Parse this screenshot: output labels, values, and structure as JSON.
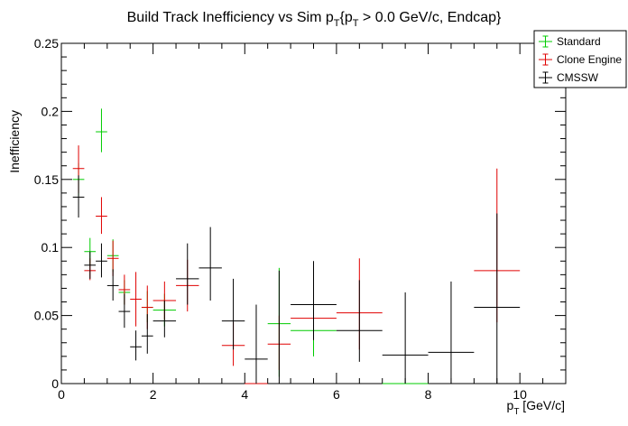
{
  "chart_data": {
    "type": "scatter",
    "title": "Build Track Inefficiency vs Sim p_{T}{p_{T} > 0.0 GeV/c, Endcap}",
    "title_parts": [
      "Build Track Inefficiency vs Sim p",
      "T",
      "{p",
      "T",
      " > 0.0 GeV/c, Endcap}"
    ],
    "xlabel_parts": [
      "p",
      "T",
      " [GeV/c]"
    ],
    "ylabel": "Inefficiency",
    "xlim": [
      0,
      11
    ],
    "ylim": [
      0,
      0.25
    ],
    "x_ticks": [
      0,
      2,
      4,
      6,
      8,
      10
    ],
    "x_tick_labels": [
      "0",
      "2",
      "4",
      "6",
      "8",
      "10"
    ],
    "y_ticks": [
      0,
      0.05,
      0.1,
      0.15,
      0.2,
      0.25
    ],
    "y_tick_labels": [
      "0",
      "0.05",
      "0.1",
      "0.15",
      "0.2",
      "0.25"
    ],
    "legend": "top-right",
    "series": [
      {
        "name": "Standard",
        "color": "#00cc00",
        "points": [
          {
            "xlo": 0.25,
            "xhi": 0.5,
            "y": 0.15,
            "elo": 0.138,
            "ehi": 0.162
          },
          {
            "xlo": 0.5,
            "xhi": 0.75,
            "y": 0.097,
            "elo": 0.087,
            "ehi": 0.107
          },
          {
            "xlo": 0.75,
            "xhi": 1.0,
            "y": 0.185,
            "elo": 0.17,
            "ehi": 0.202
          },
          {
            "xlo": 1.0,
            "xhi": 1.25,
            "y": 0.094,
            "elo": 0.082,
            "ehi": 0.106
          },
          {
            "xlo": 1.25,
            "xhi": 1.5,
            "y": 0.067,
            "elo": 0.058,
            "ehi": 0.076
          },
          {
            "xlo": 1.75,
            "xhi": 2.0,
            "y": 0.056,
            "elo": 0.045,
            "ehi": 0.068
          },
          {
            "xlo": 2.0,
            "xhi": 2.5,
            "y": 0.054,
            "elo": 0.042,
            "ehi": 0.066
          },
          {
            "xlo": 4.5,
            "xhi": 5.0,
            "y": 0.044,
            "elo": 0.005,
            "ehi": 0.085
          },
          {
            "xlo": 5.0,
            "xhi": 6.0,
            "y": 0.039,
            "elo": 0.02,
            "ehi": 0.058
          },
          {
            "xlo": 7.0,
            "xhi": 8.0,
            "y": 0.0,
            "elo": 0.0,
            "ehi": 0.0
          }
        ]
      },
      {
        "name": "Clone Engine",
        "color": "#e00000",
        "points": [
          {
            "xlo": 0.25,
            "xhi": 0.5,
            "y": 0.158,
            "elo": 0.14,
            "ehi": 0.175
          },
          {
            "xlo": 0.5,
            "xhi": 0.75,
            "y": 0.083,
            "elo": 0.076,
            "ehi": 0.092
          },
          {
            "xlo": 0.75,
            "xhi": 1.0,
            "y": 0.123,
            "elo": 0.11,
            "ehi": 0.137
          },
          {
            "xlo": 1.0,
            "xhi": 1.25,
            "y": 0.092,
            "elo": 0.079,
            "ehi": 0.105
          },
          {
            "xlo": 1.25,
            "xhi": 1.5,
            "y": 0.069,
            "elo": 0.058,
            "ehi": 0.08
          },
          {
            "xlo": 1.5,
            "xhi": 1.75,
            "y": 0.062,
            "elo": 0.042,
            "ehi": 0.082
          },
          {
            "xlo": 1.75,
            "xhi": 2.0,
            "y": 0.056,
            "elo": 0.04,
            "ehi": 0.072
          },
          {
            "xlo": 2.0,
            "xhi": 2.5,
            "y": 0.061,
            "elo": 0.047,
            "ehi": 0.075
          },
          {
            "xlo": 2.5,
            "xhi": 3.0,
            "y": 0.072,
            "elo": 0.053,
            "ehi": 0.091
          },
          {
            "xlo": 3.5,
            "xhi": 4.0,
            "y": 0.028,
            "elo": 0.013,
            "ehi": 0.045
          },
          {
            "xlo": 4.0,
            "xhi": 4.5,
            "y": 0.0,
            "elo": 0.0,
            "ehi": 0.0
          },
          {
            "xlo": 4.5,
            "xhi": 5.0,
            "y": 0.029,
            "elo": 0.01,
            "ehi": 0.05
          },
          {
            "xlo": 5.0,
            "xhi": 6.0,
            "y": 0.048,
            "elo": 0.032,
            "ehi": 0.065
          },
          {
            "xlo": 6.0,
            "xhi": 7.0,
            "y": 0.052,
            "elo": 0.025,
            "ehi": 0.092
          },
          {
            "xlo": 9.0,
            "xhi": 10.0,
            "y": 0.083,
            "elo": 0.045,
            "ehi": 0.158
          }
        ]
      },
      {
        "name": "CMSSW",
        "color": "#000000",
        "points": [
          {
            "xlo": 0.25,
            "xhi": 0.5,
            "y": 0.137,
            "elo": 0.122,
            "ehi": 0.153
          },
          {
            "xlo": 0.5,
            "xhi": 0.75,
            "y": 0.087,
            "elo": 0.077,
            "ehi": 0.097
          },
          {
            "xlo": 0.75,
            "xhi": 1.0,
            "y": 0.09,
            "elo": 0.078,
            "ehi": 0.103
          },
          {
            "xlo": 1.0,
            "xhi": 1.25,
            "y": 0.072,
            "elo": 0.061,
            "ehi": 0.084
          },
          {
            "xlo": 1.25,
            "xhi": 1.5,
            "y": 0.053,
            "elo": 0.041,
            "ehi": 0.066
          },
          {
            "xlo": 1.5,
            "xhi": 1.75,
            "y": 0.027,
            "elo": 0.017,
            "ehi": 0.039
          },
          {
            "xlo": 1.75,
            "xhi": 2.0,
            "y": 0.035,
            "elo": 0.022,
            "ehi": 0.051
          },
          {
            "xlo": 2.0,
            "xhi": 2.5,
            "y": 0.046,
            "elo": 0.034,
            "ehi": 0.061
          },
          {
            "xlo": 2.5,
            "xhi": 3.0,
            "y": 0.077,
            "elo": 0.058,
            "ehi": 0.103
          },
          {
            "xlo": 3.0,
            "xhi": 3.5,
            "y": 0.085,
            "elo": 0.061,
            "ehi": 0.115
          },
          {
            "xlo": 3.5,
            "xhi": 4.0,
            "y": 0.046,
            "elo": 0.025,
            "ehi": 0.077
          },
          {
            "xlo": 4.0,
            "xhi": 4.5,
            "y": 0.018,
            "elo": 0.0,
            "ehi": 0.058
          },
          {
            "xlo": 4.5,
            "xhi": 5.0,
            "y": 0.0,
            "elo": 0.0,
            "ehi": 0.083
          },
          {
            "xlo": 5.0,
            "xhi": 6.0,
            "y": 0.058,
            "elo": 0.032,
            "ehi": 0.09
          },
          {
            "xlo": 6.0,
            "xhi": 7.0,
            "y": 0.039,
            "elo": 0.016,
            "ehi": 0.076
          },
          {
            "xlo": 7.0,
            "xhi": 8.0,
            "y": 0.021,
            "elo": 0.0,
            "ehi": 0.067
          },
          {
            "xlo": 8.0,
            "xhi": 9.0,
            "y": 0.023,
            "elo": 0.0,
            "ehi": 0.075
          },
          {
            "xlo": 9.0,
            "xhi": 10.0,
            "y": 0.056,
            "elo": 0.0,
            "ehi": 0.125
          }
        ]
      }
    ]
  }
}
